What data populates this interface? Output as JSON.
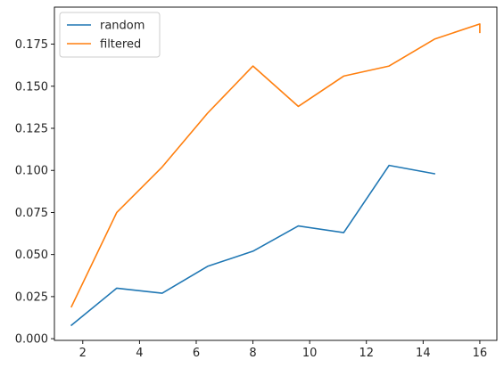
{
  "chart_data": {
    "type": "line",
    "title": "",
    "xlabel": "",
    "ylabel": "",
    "xlim": [
      1.0,
      16.6
    ],
    "ylim": [
      -0.001,
      0.197
    ],
    "grid": false,
    "legend_position": "upper left",
    "x_ticks": [
      2,
      4,
      6,
      8,
      10,
      12,
      14,
      16
    ],
    "x_tick_labels": [
      "2",
      "4",
      "6",
      "8",
      "10",
      "12",
      "14",
      "16"
    ],
    "y_ticks": [
      0.0,
      0.025,
      0.05,
      0.075,
      0.1,
      0.125,
      0.15,
      0.175
    ],
    "y_tick_labels": [
      "0.000",
      "0.025",
      "0.050",
      "0.075",
      "0.100",
      "0.125",
      "0.150",
      "0.175"
    ],
    "series": [
      {
        "name": "random",
        "color": "#1f77b4",
        "x": [
          1.6,
          3.2,
          4.8,
          6.4,
          8.0,
          9.6,
          11.2,
          12.8,
          14.4
        ],
        "y": [
          0.008,
          0.03,
          0.027,
          0.043,
          0.052,
          0.067,
          0.063,
          0.103,
          0.098
        ]
      },
      {
        "name": "filtered",
        "color": "#ff7f0e",
        "x": [
          1.6,
          3.2,
          4.8,
          6.4,
          8.0,
          9.6,
          11.2,
          12.8,
          14.4,
          16.0,
          16.0
        ],
        "y": [
          0.019,
          0.075,
          0.102,
          0.134,
          0.162,
          0.138,
          0.156,
          0.162,
          0.178,
          0.187,
          0.182
        ]
      }
    ]
  }
}
